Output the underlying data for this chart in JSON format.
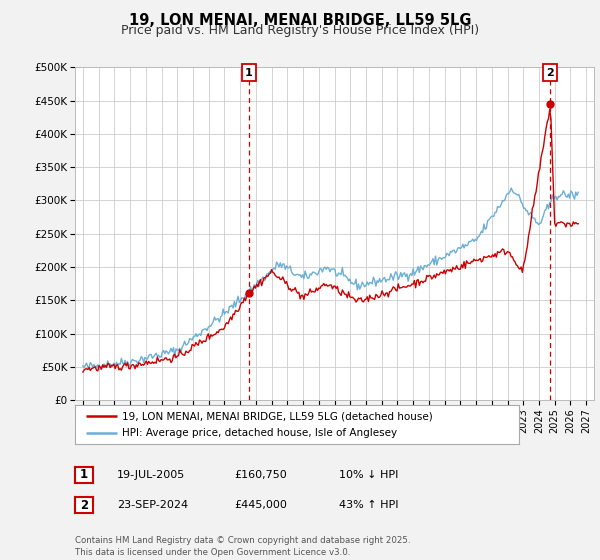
{
  "title": "19, LON MENAI, MENAI BRIDGE, LL59 5LG",
  "subtitle": "Price paid vs. HM Land Registry's House Price Index (HPI)",
  "xlim": [
    1994.5,
    2027.5
  ],
  "ylim": [
    0,
    500000
  ],
  "yticks": [
    0,
    50000,
    100000,
    150000,
    200000,
    250000,
    300000,
    350000,
    400000,
    450000,
    500000
  ],
  "ytick_labels": [
    "£0",
    "£50K",
    "£100K",
    "£150K",
    "£200K",
    "£250K",
    "£300K",
    "£350K",
    "£400K",
    "£450K",
    "£500K"
  ],
  "xticks": [
    1995,
    1996,
    1997,
    1998,
    1999,
    2000,
    2001,
    2002,
    2003,
    2004,
    2005,
    2006,
    2007,
    2008,
    2009,
    2010,
    2011,
    2012,
    2013,
    2014,
    2015,
    2016,
    2017,
    2018,
    2019,
    2020,
    2021,
    2022,
    2023,
    2024,
    2025,
    2026,
    2027
  ],
  "hpi_color": "#6baed6",
  "price_color": "#cc0000",
  "dashed_line_color": "#cc0000",
  "background_color": "#f2f2f2",
  "plot_bg_color": "#ffffff",
  "grid_color": "#cccccc",
  "sale1_year": 2005.54,
  "sale1_price": 160750,
  "sale1_label": "1",
  "sale1_date": "19-JUL-2005",
  "sale1_hpi_pct": "10% ↓ HPI",
  "sale2_year": 2024.73,
  "sale2_price": 445000,
  "sale2_label": "2",
  "sale2_date": "23-SEP-2024",
  "sale2_hpi_pct": "43% ↑ HPI",
  "legend_label1": "19, LON MENAI, MENAI BRIDGE, LL59 5LG (detached house)",
  "legend_label2": "HPI: Average price, detached house, Isle of Anglesey",
  "footnote": "Contains HM Land Registry data © Crown copyright and database right 2025.\nThis data is licensed under the Open Government Licence v3.0.",
  "title_fontsize": 10.5,
  "subtitle_fontsize": 9
}
